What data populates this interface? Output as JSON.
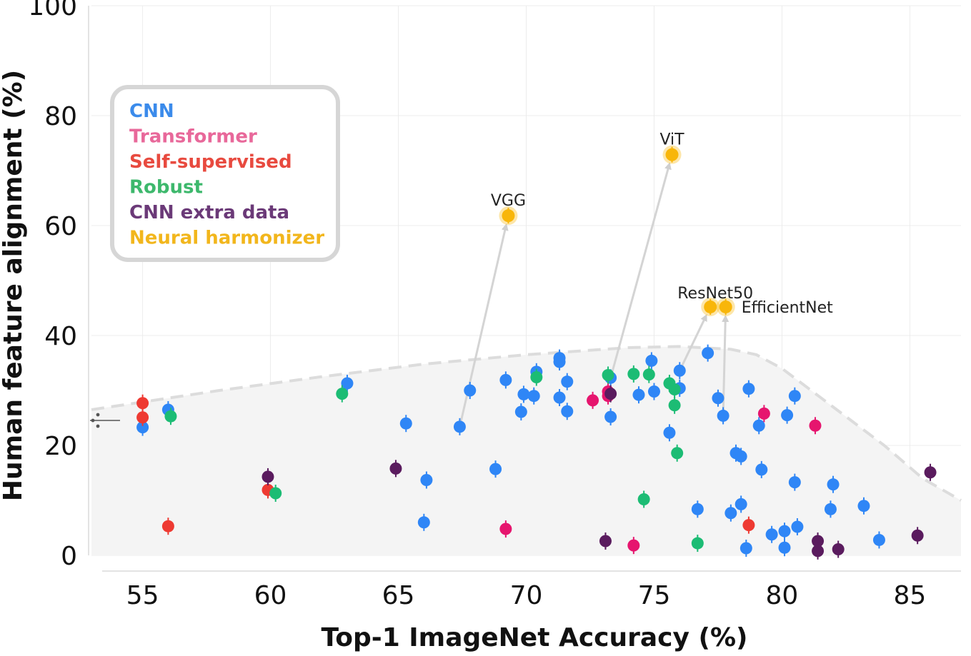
{
  "chart_data": {
    "type": "scatter",
    "title": "",
    "xlabel": "Top-1 ImageNet Accuracy (%)",
    "ylabel": "Human feature alignment (%)",
    "xlim": [
      53,
      87
    ],
    "ylim": [
      0,
      100
    ],
    "x_ticks": [
      55,
      60,
      65,
      70,
      75,
      80,
      85
    ],
    "y_ticks": [
      0,
      20,
      40,
      60,
      80,
      100
    ],
    "grid": true,
    "legend_position": "top-left",
    "legend": [
      {
        "name": "CNN",
        "color": "#3b8beb"
      },
      {
        "name": "Transformer",
        "color": "#e8689a"
      },
      {
        "name": "Self-supervised",
        "color": "#e84a3f"
      },
      {
        "name": "Robust",
        "color": "#3db86c"
      },
      {
        "name": "CNN extra data",
        "color": "#6b3a78"
      },
      {
        "name": "Neural harmonizer",
        "color": "#f2b61c"
      }
    ],
    "point_colors": {
      "cnn": "#2f86f6",
      "transformer": "#e6156e",
      "self_supervised": "#ee3a32",
      "robust": "#1cbc74",
      "extra": "#5a1b5e",
      "harmonizer": "#f8b60a"
    },
    "pareto_front": [
      [
        53,
        26.5
      ],
      [
        58,
        30
      ],
      [
        62,
        32.5
      ],
      [
        66,
        34.8
      ],
      [
        70,
        36.5
      ],
      [
        74,
        37.8
      ],
      [
        76,
        38
      ],
      [
        78,
        37.5
      ],
      [
        79,
        36.5
      ],
      [
        80,
        34
      ],
      [
        82,
        27
      ],
      [
        84,
        20
      ],
      [
        85.5,
        14
      ],
      [
        87,
        10
      ]
    ],
    "series": [
      {
        "name": "CNN",
        "key": "cnn",
        "points": [
          [
            55,
            23.3
          ],
          [
            56,
            26.5
          ],
          [
            63,
            31.3
          ],
          [
            65.3,
            24
          ],
          [
            66.1,
            13.7
          ],
          [
            66,
            6
          ],
          [
            67.4,
            23.4
          ],
          [
            67.8,
            30
          ],
          [
            68.8,
            15.7
          ],
          [
            69.2,
            31.9
          ],
          [
            69.8,
            26.1
          ],
          [
            69.9,
            29.3
          ],
          [
            70.3,
            29
          ],
          [
            70.4,
            33.4
          ],
          [
            71.3,
            35.9
          ],
          [
            71.3,
            35.2
          ],
          [
            71.3,
            28.7
          ],
          [
            71.6,
            26.2
          ],
          [
            71.6,
            31.6
          ],
          [
            73.3,
            32.3
          ],
          [
            73.3,
            25.2
          ],
          [
            74.4,
            29.2
          ],
          [
            74.9,
            35.4
          ],
          [
            75.0,
            29.8
          ],
          [
            75.6,
            22.3
          ],
          [
            76.0,
            33.6
          ],
          [
            76.0,
            30.4
          ],
          [
            76.7,
            8.4
          ],
          [
            77.1,
            36.8
          ],
          [
            77.5,
            28.6
          ],
          [
            77.7,
            25.4
          ],
          [
            78.0,
            7.7
          ],
          [
            78.2,
            18.6
          ],
          [
            78.4,
            9.3
          ],
          [
            78.4,
            18.0
          ],
          [
            78.6,
            1.3
          ],
          [
            78.7,
            30.3
          ],
          [
            79.1,
            23.6
          ],
          [
            79.2,
            15.6
          ],
          [
            79.6,
            3.8
          ],
          [
            80.1,
            4.4
          ],
          [
            80.1,
            1.4
          ],
          [
            80.2,
            25.5
          ],
          [
            80.5,
            13.3
          ],
          [
            80.5,
            29.0
          ],
          [
            80.6,
            5.2
          ],
          [
            81.9,
            8.4
          ],
          [
            82.0,
            12.9
          ],
          [
            83.2,
            9.0
          ],
          [
            83.8,
            2.8
          ]
        ]
      },
      {
        "name": "Transformer",
        "key": "transformer",
        "points": [
          [
            69.2,
            4.8
          ],
          [
            72.6,
            28.2
          ],
          [
            73.2,
            29.8
          ],
          [
            73.2,
            29.0
          ],
          [
            74.2,
            1.8
          ],
          [
            79.3,
            25.8
          ],
          [
            81.3,
            23.6
          ]
        ]
      },
      {
        "name": "Self-supervised",
        "key": "self_supervised",
        "points": [
          [
            55,
            27.7
          ],
          [
            55,
            25.1
          ],
          [
            56,
            5.3
          ],
          [
            59.9,
            11.9
          ],
          [
            78.7,
            5.5
          ]
        ]
      },
      {
        "name": "Robust",
        "key": "robust",
        "points": [
          [
            56.1,
            25.3
          ],
          [
            60.2,
            11.3
          ],
          [
            62.8,
            29.4
          ],
          [
            70.4,
            32.4
          ],
          [
            73.2,
            32.8
          ],
          [
            74.2,
            33.0
          ],
          [
            74.6,
            10.2
          ],
          [
            74.8,
            32.9
          ],
          [
            75.6,
            31.3
          ],
          [
            75.8,
            30.2
          ],
          [
            75.8,
            27.3
          ],
          [
            75.9,
            18.6
          ],
          [
            76.7,
            2.2
          ]
        ]
      },
      {
        "name": "CNN extra data",
        "key": "extra",
        "points": [
          [
            59.9,
            14.3
          ],
          [
            64.9,
            15.8
          ],
          [
            73.1,
            2.6
          ],
          [
            73.3,
            29.4
          ],
          [
            81.4,
            2.6
          ],
          [
            81.4,
            0.8
          ],
          [
            82.2,
            1.1
          ],
          [
            85.3,
            3.6
          ],
          [
            85.8,
            15.1
          ]
        ]
      },
      {
        "name": "Neural harmonizer",
        "key": "harmonizer",
        "points": [
          {
            "x": 69.3,
            "y": 61.8,
            "label": "VGG"
          },
          {
            "x": 75.7,
            "y": 72.9,
            "label": "ViT"
          },
          {
            "x": 77.2,
            "y": 45.2,
            "label": "ResNet50"
          },
          {
            "x": 77.8,
            "y": 45.2,
            "label": "EfficientNet"
          }
        ]
      }
    ],
    "arrows": [
      {
        "from": [
          67.4,
          23.4
        ],
        "to": [
          69.3,
          61.8
        ]
      },
      {
        "from": [
          73.3,
          32.3
        ],
        "to": [
          75.7,
          72.9
        ]
      },
      {
        "from": [
          76.0,
          33.6
        ],
        "to": [
          77.2,
          45.2
        ]
      },
      {
        "from": [
          77.7,
          25.4
        ],
        "to": [
          77.8,
          45.2
        ]
      }
    ]
  }
}
